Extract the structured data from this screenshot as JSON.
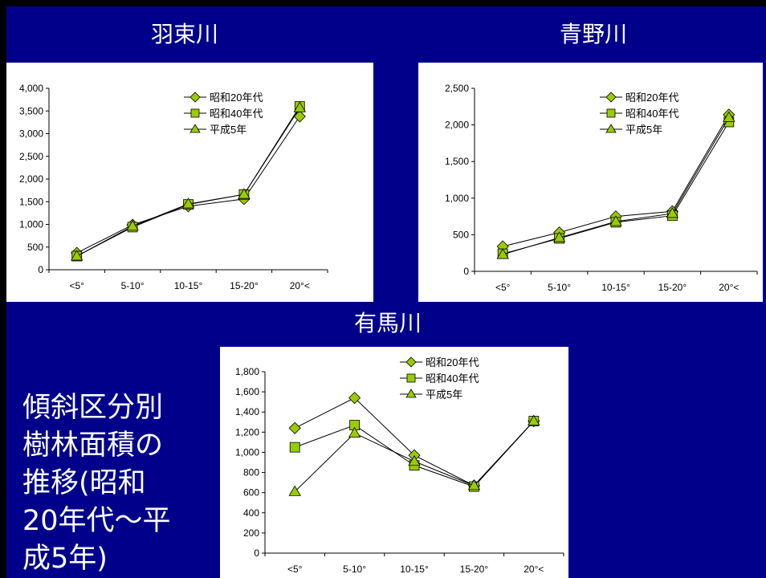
{
  "caption": "傾斜区分別\n樹林面積の\n推移(昭和\n20年代～平\n成5年)",
  "chart_data": [
    {
      "type": "line",
      "title": "羽束川",
      "categories": [
        "<5°",
        "5-10°",
        "10-15°",
        "15-20°",
        "20°<"
      ],
      "ylim": [
        0,
        4000
      ],
      "yticks": [
        0,
        500,
        1000,
        1500,
        2000,
        2500,
        3000,
        3500,
        4000
      ],
      "ytick_labels": [
        "0",
        "500",
        "1,000",
        "1,500",
        "2,000",
        "2,500",
        "3,000",
        "3,500",
        "4,000"
      ],
      "series": [
        {
          "name": "昭和20年代",
          "marker": "diamond",
          "values": [
            370,
            990,
            1400,
            1560,
            3380
          ]
        },
        {
          "name": "昭和40年代",
          "marker": "square",
          "values": [
            300,
            940,
            1440,
            1660,
            3600
          ]
        },
        {
          "name": "平成5年",
          "marker": "triangle",
          "values": [
            300,
            960,
            1450,
            1660,
            3570
          ]
        }
      ],
      "legend": "top-right",
      "grid": false
    },
    {
      "type": "line",
      "title": "青野川",
      "categories": [
        "<5°",
        "5-10°",
        "10-15°",
        "15-20°",
        "20°<"
      ],
      "ylim": [
        0,
        2500
      ],
      "yticks": [
        0,
        500,
        1000,
        1500,
        2000,
        2500
      ],
      "ytick_labels": [
        "0",
        "500",
        "1,000",
        "1,500",
        "2,000",
        "2,500"
      ],
      "series": [
        {
          "name": "昭和20年代",
          "marker": "diamond",
          "values": [
            340,
            530,
            750,
            820,
            2140
          ]
        },
        {
          "name": "昭和40年代",
          "marker": "square",
          "values": [
            240,
            450,
            670,
            760,
            2040
          ]
        },
        {
          "name": "平成5年",
          "marker": "triangle",
          "values": [
            230,
            460,
            680,
            790,
            2100
          ]
        }
      ],
      "legend": "top-right",
      "grid": false
    },
    {
      "type": "line",
      "title": "有馬川",
      "categories": [
        "<5°",
        "5-10°",
        "10-15°",
        "15-20°",
        "20°<"
      ],
      "ylim": [
        0,
        1800
      ],
      "yticks": [
        0,
        200,
        400,
        600,
        800,
        1000,
        1200,
        1400,
        1600,
        1800
      ],
      "ytick_labels": [
        "0",
        "200",
        "400",
        "600",
        "800",
        "1,000",
        "1,200",
        "1,400",
        "1,600",
        "1,800"
      ],
      "series": [
        {
          "name": "昭和20年代",
          "marker": "diamond",
          "values": [
            1240,
            1540,
            970,
            670,
            1310
          ]
        },
        {
          "name": "昭和40年代",
          "marker": "square",
          "values": [
            1050,
            1270,
            870,
            660,
            1310
          ]
        },
        {
          "name": "平成5年",
          "marker": "triangle",
          "values": [
            610,
            1190,
            910,
            670,
            1310
          ]
        }
      ],
      "legend": "top-right",
      "grid": false
    }
  ],
  "colors": {
    "background": "#00008B",
    "marker_fill": "#99CC00",
    "line": "#000000",
    "panel": "#ffffff",
    "text": "#ffffff"
  }
}
